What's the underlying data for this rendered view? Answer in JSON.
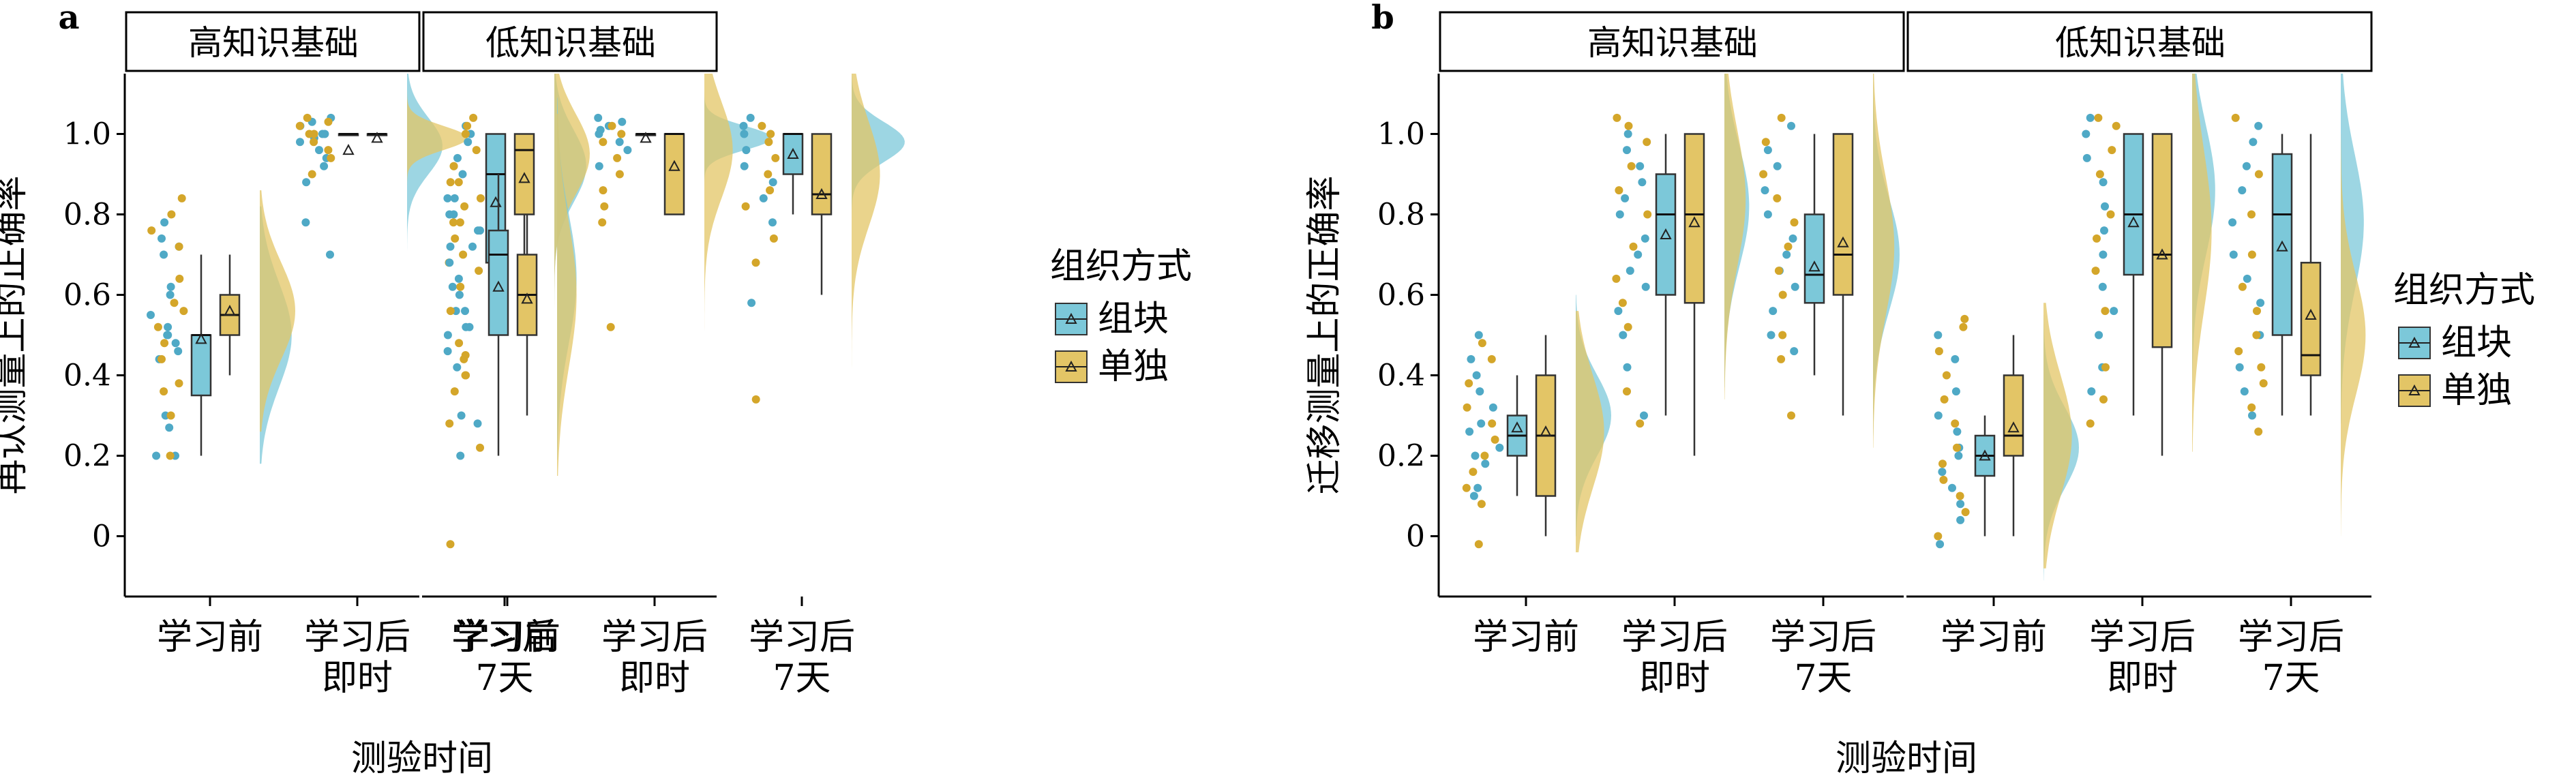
{
  "colors": {
    "chunk": "#7CC8D9",
    "single": "#E3C566",
    "overlap": "#9DB974",
    "dotChunk": "#4FA9C6",
    "dotSingle": "#D4A62A"
  },
  "legend": {
    "title": "组织方式",
    "items": [
      "组块",
      "单独"
    ]
  },
  "chart_data": [
    {
      "panel_label": "a",
      "type": "raincloud-boxplot",
      "ylabel": "再认测量上的正确率",
      "xlabel": "测验时间",
      "ylim": [
        -0.15,
        1.15
      ],
      "yticks": [
        "0",
        "0.2",
        "0.4",
        "0.6",
        "0.8",
        "1.0"
      ],
      "categories": [
        "学习前",
        "学习后\n即时",
        "学习后\n7天"
      ],
      "facets": [
        {
          "label": "高知识基础",
          "groups": [
            {
              "box": [
                {
                  "q1": 0.35,
                  "median": 0.5,
                  "q3": 0.5,
                  "min": 0.2,
                  "max": 0.7,
                  "mean": 0.49
                },
                {
                  "q1": 0.5,
                  "median": 0.55,
                  "q3": 0.6,
                  "min": 0.4,
                  "max": 0.7,
                  "mean": 0.56
                }
              ],
              "density": [
                {
                  "mu": 0.5,
                  "sd": 0.13,
                  "spread": 0.32,
                  "amp": 0.9
                },
                {
                  "mu": 0.56,
                  "sd": 0.12,
                  "spread": 0.3,
                  "amp": 1.0
                }
              ],
              "points": [
                [
                  0.2,
                  0.2,
                  0.27,
                  0.3,
                  0.44,
                  0.46,
                  0.48,
                  0.5,
                  0.5,
                  0.52,
                  0.55,
                  0.6,
                  0.62,
                  0.7,
                  0.72,
                  0.74,
                  0.78
                ],
                [
                  0.2,
                  0.3,
                  0.36,
                  0.38,
                  0.44,
                  0.48,
                  0.52,
                  0.56,
                  0.58,
                  0.64,
                  0.72,
                  0.76,
                  0.8,
                  0.84
                ]
              ]
            },
            {
              "box": [
                {
                  "q1": 1.0,
                  "median": 1.0,
                  "q3": 1.0,
                  "min": 1.0,
                  "max": 1.0,
                  "mean": 0.96
                },
                {
                  "q1": 1.0,
                  "median": 1.0,
                  "q3": 1.0,
                  "min": 1.0,
                  "max": 1.0,
                  "mean": 0.99
                }
              ],
              "density": [
                {
                  "mu": 0.97,
                  "sd": 0.07,
                  "spread": 0.35,
                  "amp": 1.0
                },
                {
                  "mu": 0.99,
                  "sd": 0.03,
                  "spread": 0.15,
                  "amp": 1.7
                }
              ],
              "points": [
                [
                  0.7,
                  0.78,
                  0.88,
                  0.92,
                  0.94,
                  0.96,
                  0.98,
                  0.99,
                  1.0,
                  1.0,
                  1.02,
                  1.03,
                  1.04
                ],
                [
                  0.9,
                  0.94,
                  0.96,
                  0.98,
                  1.0,
                  1.0,
                  1.02,
                  1.03,
                  1.04
                ]
              ]
            },
            {
              "box": [
                {
                  "q1": 0.68,
                  "median": 0.9,
                  "q3": 1.0,
                  "min": 0.5,
                  "max": 1.0,
                  "mean": 0.83
                },
                {
                  "q1": 0.8,
                  "median": 0.96,
                  "q3": 1.0,
                  "min": 0.6,
                  "max": 1.0,
                  "mean": 0.89
                }
              ],
              "density": [
                {
                  "mu": 0.92,
                  "sd": 0.09,
                  "spread": 0.4,
                  "amp": 0.9
                },
                {
                  "mu": 0.95,
                  "sd": 0.1,
                  "spread": 0.5,
                  "amp": 1.0
                }
              ],
              "points": [
                [
                  0.52,
                  0.56,
                  0.62,
                  0.72,
                  0.76,
                  0.8,
                  0.84,
                  0.9,
                  0.94,
                  0.98,
                  1.0,
                  1.02
                ],
                [
                  0.4,
                  0.45,
                  0.68,
                  0.78,
                  0.82,
                  0.88,
                  0.92,
                  0.96,
                  1.0,
                  1.02,
                  1.04
                ]
              ]
            }
          ]
        },
        {
          "label": "低知识基础",
          "groups": [
            {
              "box": [
                {
                  "q1": 0.5,
                  "median": 0.7,
                  "q3": 0.76,
                  "min": 0.2,
                  "max": 0.9,
                  "mean": 0.62
                },
                {
                  "q1": 0.5,
                  "median": 0.6,
                  "q3": 0.7,
                  "min": 0.3,
                  "max": 0.8,
                  "mean": 0.59
                }
              ],
              "density": [
                {
                  "mu": 0.64,
                  "sd": 0.16,
                  "spread": 0.45,
                  "amp": 0.55
                },
                {
                  "mu": 0.6,
                  "sd": 0.18,
                  "spread": 0.45,
                  "amp": 0.55
                }
              ],
              "points": [
                [
                  0.2,
                  0.28,
                  0.3,
                  0.42,
                  0.46,
                  0.5,
                  0.52,
                  0.56,
                  0.6,
                  0.64,
                  0.68,
                  0.72,
                  0.76,
                  0.8,
                  0.84
                ],
                [
                  -0.02,
                  0.22,
                  0.28,
                  0.36,
                  0.4,
                  0.44,
                  0.48,
                  0.56,
                  0.62,
                  0.66,
                  0.7,
                  0.74,
                  0.78,
                  0.84,
                  0.88,
                  0.92
                ]
              ]
            },
            {
              "box": [
                {
                  "q1": 1.0,
                  "median": 1.0,
                  "q3": 1.0,
                  "min": 1.0,
                  "max": 1.0,
                  "mean": 0.99
                },
                {
                  "q1": 0.8,
                  "median": 1.0,
                  "q3": 1.0,
                  "min": 0.8,
                  "max": 1.0,
                  "mean": 0.92
                }
              ],
              "density": [
                {
                  "mu": 0.99,
                  "sd": 0.03,
                  "spread": 0.2,
                  "amp": 1.9
                },
                {
                  "mu": 0.96,
                  "sd": 0.12,
                  "spread": 0.45,
                  "amp": 0.8
                }
              ],
              "points": [
                [
                  0.92,
                  0.96,
                  0.98,
                  1.0,
                  1.01,
                  1.02,
                  1.03,
                  1.04
                ],
                [
                  0.52,
                  0.78,
                  0.82,
                  0.86,
                  0.9,
                  0.94,
                  0.98,
                  1.0,
                  1.02
                ]
              ]
            },
            {
              "box": [
                {
                  "q1": 0.9,
                  "median": 1.0,
                  "q3": 1.0,
                  "min": 0.8,
                  "max": 1.0,
                  "mean": 0.95
                },
                {
                  "q1": 0.8,
                  "median": 0.85,
                  "q3": 1.0,
                  "min": 0.6,
                  "max": 1.0,
                  "mean": 0.85
                }
              ],
              "density": [
                {
                  "mu": 0.98,
                  "sd": 0.05,
                  "spread": 0.25,
                  "amp": 1.5
                },
                {
                  "mu": 0.9,
                  "sd": 0.13,
                  "spread": 0.6,
                  "amp": 0.8
                }
              ],
              "points": [
                [
                  0.58,
                  0.78,
                  0.84,
                  0.88,
                  0.92,
                  0.96,
                  1.0,
                  1.02,
                  1.04
                ],
                [
                  0.34,
                  0.68,
                  0.74,
                  0.82,
                  0.86,
                  0.9,
                  0.94,
                  0.98,
                  1.0,
                  1.02
                ]
              ]
            }
          ]
        }
      ]
    },
    {
      "panel_label": "b",
      "type": "raincloud-boxplot",
      "ylabel": "迁移测量上的正确率",
      "xlabel": "测验时间",
      "ylim": [
        -0.15,
        1.15
      ],
      "yticks": [
        "0",
        "0.2",
        "0.4",
        "0.6",
        "0.8",
        "1.0"
      ],
      "categories": [
        "学习前",
        "学习后\n即时",
        "学习后\n7天"
      ],
      "facets": [
        {
          "label": "高知识基础",
          "groups": [
            {
              "box": [
                {
                  "q1": 0.2,
                  "median": 0.25,
                  "q3": 0.3,
                  "min": 0.1,
                  "max": 0.4,
                  "mean": 0.27
                },
                {
                  "q1": 0.1,
                  "median": 0.25,
                  "q3": 0.4,
                  "min": 0.0,
                  "max": 0.5,
                  "mean": 0.26
                }
              ],
              "density": [
                {
                  "mu": 0.3,
                  "sd": 0.1,
                  "spread": 0.3,
                  "amp": 1.0
                },
                {
                  "mu": 0.26,
                  "sd": 0.14,
                  "spread": 0.3,
                  "amp": 0.8
                }
              ],
              "points": [
                [
                  0.1,
                  0.12,
                  0.18,
                  0.2,
                  0.22,
                  0.26,
                  0.28,
                  0.32,
                  0.36,
                  0.4,
                  0.44,
                  0.5
                ],
                [
                  -0.02,
                  0.08,
                  0.12,
                  0.16,
                  0.2,
                  0.24,
                  0.28,
                  0.32,
                  0.38,
                  0.44,
                  0.48
                ]
              ]
            },
            {
              "box": [
                {
                  "q1": 0.6,
                  "median": 0.8,
                  "q3": 0.9,
                  "min": 0.3,
                  "max": 1.0,
                  "mean": 0.75
                },
                {
                  "q1": 0.58,
                  "median": 0.8,
                  "q3": 1.0,
                  "min": 0.2,
                  "max": 1.0,
                  "mean": 0.78
                }
              ],
              "density": [
                {
                  "mu": 0.82,
                  "sd": 0.15,
                  "spread": 0.45,
                  "amp": 0.7
                },
                {
                  "mu": 0.84,
                  "sd": 0.17,
                  "spread": 0.5,
                  "amp": 0.6
                }
              ],
              "points": [
                [
                  0.3,
                  0.42,
                  0.5,
                  0.56,
                  0.62,
                  0.66,
                  0.7,
                  0.74,
                  0.8,
                  0.84,
                  0.88,
                  0.92,
                  0.96,
                  1.0
                ],
                [
                  0.28,
                  0.36,
                  0.52,
                  0.58,
                  0.64,
                  0.72,
                  0.8,
                  0.86,
                  0.92,
                  0.98,
                  1.02,
                  1.04
                ]
              ]
            },
            {
              "box": [
                {
                  "q1": 0.58,
                  "median": 0.65,
                  "q3": 0.8,
                  "min": 0.4,
                  "max": 1.0,
                  "mean": 0.67
                },
                {
                  "q1": 0.6,
                  "median": 0.7,
                  "q3": 1.0,
                  "min": 0.3,
                  "max": 1.0,
                  "mean": 0.73
                }
              ],
              "density": [
                {
                  "mu": 0.7,
                  "sd": 0.14,
                  "spread": 0.45,
                  "amp": 0.75
                },
                {
                  "mu": 0.72,
                  "sd": 0.17,
                  "spread": 0.5,
                  "amp": 0.6
                }
              ],
              "points": [
                [
                  0.46,
                  0.5,
                  0.56,
                  0.62,
                  0.66,
                  0.7,
                  0.74,
                  0.8,
                  0.86,
                  0.92,
                  0.96,
                  1.02
                ],
                [
                  0.3,
                  0.44,
                  0.5,
                  0.6,
                  0.66,
                  0.72,
                  0.78,
                  0.84,
                  0.9,
                  0.98,
                  1.04
                ]
              ]
            }
          ]
        },
        {
          "label": "低知识基础",
          "groups": [
            {
              "box": [
                {
                  "q1": 0.15,
                  "median": 0.2,
                  "q3": 0.25,
                  "min": 0.0,
                  "max": 0.3,
                  "mean": 0.2
                },
                {
                  "q1": 0.2,
                  "median": 0.25,
                  "q3": 0.4,
                  "min": 0.0,
                  "max": 0.5,
                  "mean": 0.27
                }
              ],
              "density": [
                {
                  "mu": 0.22,
                  "sd": 0.1,
                  "spread": 0.33,
                  "amp": 1.0
                },
                {
                  "mu": 0.25,
                  "sd": 0.15,
                  "spread": 0.33,
                  "amp": 0.8
                }
              ],
              "points": [
                [
                  -0.02,
                  0.04,
                  0.08,
                  0.12,
                  0.16,
                  0.2,
                  0.22,
                  0.26,
                  0.3,
                  0.36,
                  0.44,
                  0.5
                ],
                [
                  0.0,
                  0.06,
                  0.1,
                  0.14,
                  0.18,
                  0.22,
                  0.28,
                  0.34,
                  0.4,
                  0.46,
                  0.52,
                  0.54
                ]
              ]
            },
            {
              "box": [
                {
                  "q1": 0.65,
                  "median": 0.8,
                  "q3": 1.0,
                  "min": 0.3,
                  "max": 1.0,
                  "mean": 0.78
                },
                {
                  "q1": 0.47,
                  "median": 0.7,
                  "q3": 1.0,
                  "min": 0.2,
                  "max": 1.0,
                  "mean": 0.7
                }
              ],
              "density": [
                {
                  "mu": 0.86,
                  "sd": 0.16,
                  "spread": 0.5,
                  "amp": 0.65
                },
                {
                  "mu": 0.76,
                  "sd": 0.2,
                  "spread": 0.55,
                  "amp": 0.55
                }
              ],
              "points": [
                [
                  0.36,
                  0.42,
                  0.5,
                  0.56,
                  0.62,
                  0.7,
                  0.76,
                  0.82,
                  0.88,
                  0.94,
                  1.0,
                  1.04
                ],
                [
                  0.28,
                  0.34,
                  0.42,
                  0.56,
                  0.66,
                  0.74,
                  0.8,
                  0.9,
                  0.96,
                  1.02,
                  1.04
                ]
              ]
            },
            {
              "box": [
                {
                  "q1": 0.5,
                  "median": 0.8,
                  "q3": 0.95,
                  "min": 0.3,
                  "max": 1.0,
                  "mean": 0.72
                },
                {
                  "q1": 0.4,
                  "median": 0.45,
                  "q3": 0.68,
                  "min": 0.3,
                  "max": 1.0,
                  "mean": 0.55
                }
              ],
              "density": [
                {
                  "mu": 0.78,
                  "sd": 0.17,
                  "spread": 0.5,
                  "amp": 0.65
                },
                {
                  "mu": 0.5,
                  "sd": 0.15,
                  "spread": 0.5,
                  "amp": 0.7
                }
              ],
              "points": [
                [
                  0.3,
                  0.36,
                  0.42,
                  0.5,
                  0.58,
                  0.64,
                  0.7,
                  0.78,
                  0.86,
                  0.92,
                  0.98,
                  1.02
                ],
                [
                  0.26,
                  0.32,
                  0.38,
                  0.42,
                  0.46,
                  0.5,
                  0.56,
                  0.62,
                  0.7,
                  0.8,
                  0.9,
                  1.04
                ]
              ]
            }
          ]
        }
      ]
    }
  ]
}
